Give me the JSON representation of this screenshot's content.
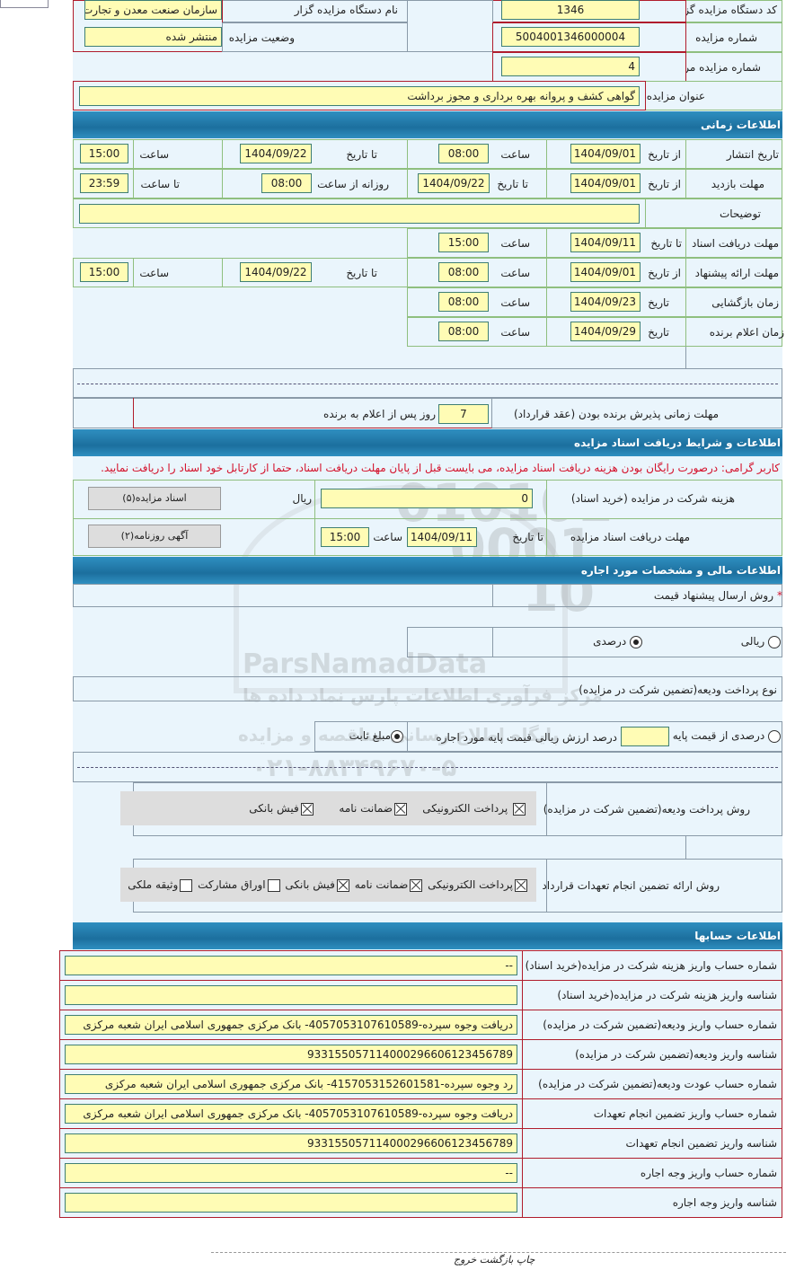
{
  "header": {
    "org_code_label": "کد دستگاه مزایده گزار",
    "org_code": "1346",
    "org_name_label": "نام دستگاه مزایده گزار",
    "org_name": "سازمان صنعت معدن و تجارت",
    "auction_no_label": "شماره مزایده",
    "auction_no": "5004001346000004",
    "status_label": "وضعیت مزایده",
    "status": "منتشر شده",
    "ref_no_label": "شماره مزایده مرجع",
    "ref_no": "4",
    "title_label": "عنوان مزایده",
    "title": "گواهی کشف و پروانه بهره برداری و مجوز برداشت"
  },
  "time": {
    "section": "اطلاعات زمانی",
    "from_date": "از تاریخ",
    "to_date": "تا تاریخ",
    "date": "تاریخ",
    "time": "ساعت",
    "to_time": "تا ساعت",
    "daily_from": "روزانه از ساعت",
    "publish_label": "تاریخ انتشار",
    "publish_from": "1404/09/01",
    "publish_from_time": "08:00",
    "publish_to": "1404/09/22",
    "publish_to_time": "15:00",
    "visit_label": "مهلت بازدید",
    "visit_from": "1404/09/01",
    "visit_to": "1404/09/22",
    "visit_daily_from": "08:00",
    "visit_to_time": "23:59",
    "notes_label": "توضیحات",
    "notes": "",
    "doc_deadline_label": "مهلت دریافت اسناد",
    "doc_deadline": "1404/09/11",
    "doc_deadline_time": "15:00",
    "offer_label": "مهلت ارائه پیشنهاد",
    "offer_from": "1404/09/01",
    "offer_from_time": "08:00",
    "offer_to": "1404/09/22",
    "offer_to_time": "15:00",
    "opening_label": "زمان بازگشایی",
    "opening_date": "1404/09/23",
    "opening_time": "08:00",
    "winner_label": "زمان اعلام برنده",
    "winner_date": "1404/09/29",
    "winner_time": "08:00",
    "acceptance_label": "مهلت زمانی پذیرش برنده بودن (عقد قرارداد)",
    "acceptance_days": "7",
    "acceptance_suffix": "روز پس از اعلام به برنده"
  },
  "docs": {
    "section": "اطلاعات و شرایط دریافت اسناد مزایده",
    "notice": "کاربر گرامی: درصورت رایگان بودن هزینه دریافت اسناد مزایده، می بایست قبل از پایان مهلت دریافت اسناد، حتما از کارتابل خود اسناد را دریافت نمایید.",
    "fee_label": "هزینه شرکت در مزایده (خرید اسناد)",
    "fee": "0",
    "currency": "ریال",
    "docs_button": "اسناد مزایده(۵)",
    "deadline_label": "مهلت دریافت اسناد مزایده",
    "to_date": "تا تاریخ",
    "deadline_date": "1404/09/11",
    "time": "ساعت",
    "deadline_time": "15:00",
    "ads_button": "آگهی روزنامه(۲)"
  },
  "finance": {
    "section": "اطلاعات مالی و مشخصات مورد اجاره",
    "price_method_label": "روش ارسال پیشنهاد قیمت",
    "required_mark": "*",
    "rial_option": "ریالی",
    "percent_option": "درصدی",
    "percent_selected": true,
    "deposit_type_label": "نوع پرداخت ودیعه(تضمین شرکت در مزایده)",
    "percent_of_base": "درصدی از قیمت پایه",
    "percent_of_base_text": "درصد ارزش ریالی قیمت پایه مورد اجاره",
    "fixed_amount": "مبلغ ثابت",
    "fixed_selected": true,
    "deposit_methods_label": "روش پرداخت ودیعه(تضمین شرکت در مزایده)",
    "deposit_methods": [
      {
        "label": "پرداخت الکترونیکی",
        "checked": true
      },
      {
        "label": "ضمانت نامه",
        "checked": true
      },
      {
        "label": "فیش بانکی",
        "checked": true
      }
    ],
    "guarantee_label": "روش ارائه تضمین انجام تعهدات قرارداد",
    "guarantee_methods": [
      {
        "label": "پرداخت الکترونیکی",
        "checked": true
      },
      {
        "label": "ضمانت نامه",
        "checked": true
      },
      {
        "label": "فیش بانکی",
        "checked": true
      },
      {
        "label": "اوراق مشارکت",
        "checked": false
      },
      {
        "label": "وثیقه ملکی",
        "checked": false
      }
    ]
  },
  "accounts": {
    "section": "اطلاعات حسابها",
    "rows": [
      {
        "label": "شماره حساب واریز هزینه شرکت در مزایده(خرید اسناد)",
        "value": "--"
      },
      {
        "label": "شناسه واریز هزینه شرکت در مزایده(خرید اسناد)",
        "value": ""
      },
      {
        "label": "شماره حساب واریز ودیعه(تضمین شرکت در مزایده)",
        "value": "دریافت وجوه سپرده-4057053107610589- بانک مرکزی جمهوری اسلامی ایران شعبه مرکزی"
      },
      {
        "label": "شناسه واریز ودیعه(تضمین شرکت در مزایده)",
        "value": "933155057114000296606123456789"
      },
      {
        "label": "شماره حساب عودت ودیعه(تضمین شرکت در مزایده)",
        "value": "رد وجوه سپرده-4157053152601581- بانک مرکزی جمهوری اسلامی ایران شعبه مرکزی"
      },
      {
        "label": "شماره حساب واریز تضمین انجام تعهدات",
        "value": "دریافت وجوه سپرده-4057053107610589- بانک مرکزی جمهوری اسلامی ایران شعبه مرکزی"
      },
      {
        "label": "شناسه واریز تضمین انجام تعهدات",
        "value": "933155057114000296606123456789"
      },
      {
        "label": "شماره حساب واریز وجه اجاره",
        "value": "--"
      },
      {
        "label": "شناسه واریز وجه اجاره",
        "value": ""
      }
    ]
  },
  "footer": {
    "print": "چاپ",
    "back": "بازگشت",
    "exit": "خروج"
  },
  "watermark": {
    "brand": "ParsNamadData",
    "subtitle": "مرکز فرآوری اطلاعات پارس نماد داده ها",
    "subtitle2": "پایگاه اطلاع رسانی مناقصه و مزایده",
    "phone": "۰۲۱-۸۸۳۴۹۶۷۰-۵"
  }
}
